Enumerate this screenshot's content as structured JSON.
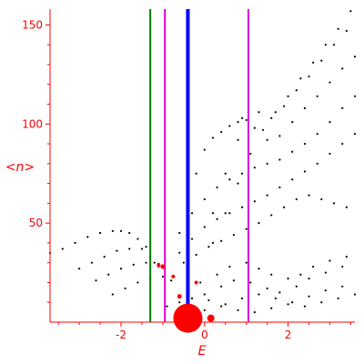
{
  "chart_data": {
    "type": "scatter",
    "title": "",
    "xlabel": "E",
    "ylabel": "<n>",
    "xlim": [
      -3.7,
      3.6
    ],
    "ylim": [
      0,
      158
    ],
    "xticks": [
      -2,
      0,
      2
    ],
    "xtick_labels": [
      "-2",
      "0",
      "2"
    ],
    "yticks": [
      50,
      100,
      150
    ],
    "ytick_labels": [
      "50",
      "100",
      "150"
    ],
    "grid": false,
    "legend": "none",
    "colors": {
      "axis": "#ff0000",
      "points": "#000000",
      "highlight": "#ff0000",
      "blue_line": "#0000ff",
      "green_line": "#008000",
      "magenta_line": "#dd00dd"
    },
    "vertical_lines": [
      {
        "x": -1.3,
        "color": "green"
      },
      {
        "x": -0.95,
        "color": "magenta"
      },
      {
        "x": -0.4,
        "color": "blue"
      },
      {
        "x": 1.05,
        "color": "magenta"
      }
    ],
    "series": [
      {
        "x": [
          0.2,
          0.5,
          0.8,
          1.1,
          1.4,
          1.7,
          2.0,
          2.3,
          2.6,
          2.9,
          3.2,
          3.5
        ],
        "y": [
          40,
          55,
          70,
          85,
          97,
          106,
          114,
          123,
          131,
          140,
          148,
          157
        ]
      },
      {
        "x": [
          0.2,
          0.5,
          0.8,
          1.0,
          1.3,
          1.6,
          1.9,
          2.2,
          2.5,
          2.8,
          3.1,
          3.4
        ],
        "y": [
          55,
          75,
          92,
          102,
          106,
          103,
          109,
          117,
          124,
          132,
          140,
          147
        ]
      },
      {
        "x": [
          -0.4,
          -0.2,
          0.0,
          0.2,
          0.4,
          0.6,
          0.8,
          0.9,
          1.2,
          1.5,
          1.8,
          2.1,
          2.4,
          2.7,
          3.0,
          3.3,
          3.6
        ],
        "y": [
          60,
          75,
          87,
          93,
          96,
          99,
          101,
          103,
          98,
          92,
          94,
          101,
          108,
          114,
          121,
          128,
          134
        ]
      },
      {
        "x": [
          -0.6,
          -0.3,
          0.0,
          0.3,
          0.6,
          0.9,
          1.2,
          1.5,
          1.8,
          2.1,
          2.4,
          2.7,
          3.0,
          3.3,
          3.6
        ],
        "y": [
          45,
          55,
          62,
          68,
          72,
          75,
          78,
          80,
          82,
          86,
          90,
          95,
          101,
          108,
          114
        ]
      },
      {
        "x": [
          -0.6,
          -0.3,
          0.0,
          0.3,
          0.6,
          0.9,
          1.2,
          1.5,
          1.8,
          2.1,
          2.4,
          2.7,
          3.0,
          3.3,
          3.6
        ],
        "y": [
          35,
          42,
          48,
          52,
          55,
          58,
          61,
          64,
          68,
          72,
          76,
          80,
          85,
          90,
          95
        ]
      },
      {
        "x": [
          -0.5,
          -0.2,
          0.1,
          0.4,
          0.7,
          1.0,
          1.3,
          1.6,
          1.9,
          2.2,
          2.5,
          2.8,
          3.1,
          3.4
        ],
        "y": [
          30,
          34,
          38,
          41,
          44,
          47,
          50,
          54,
          58,
          62,
          64,
          62,
          60,
          58
        ]
      },
      {
        "x": [
          -3.7,
          -3.4,
          -3.1,
          -2.8,
          -2.5,
          -2.2,
          -2.0,
          -1.8,
          -1.6,
          -1.4,
          -1.2
        ],
        "y": [
          35,
          37,
          40,
          43,
          45,
          46,
          46,
          45,
          42,
          38,
          30
        ]
      },
      {
        "x": [
          -3.0,
          -2.7,
          -2.4,
          -2.1,
          -1.8,
          -1.5,
          -1.3
        ],
        "y": [
          27,
          30,
          33,
          36,
          37,
          37,
          33
        ]
      },
      {
        "x": [
          -2.6,
          -2.3,
          -2.0,
          -1.7,
          -1.4,
          -1.1
        ],
        "y": [
          21,
          24,
          27,
          29,
          30,
          28
        ]
      },
      {
        "x": [
          -2.2,
          -1.9,
          -1.6,
          -1.3,
          -1.0,
          -0.8
        ],
        "y": [
          14,
          17,
          20,
          22,
          23,
          21
        ]
      },
      {
        "x": [
          -0.1,
          0.3,
          0.6,
          1.0,
          1.3,
          1.6,
          2.0,
          2.3,
          2.6,
          3.0,
          3.4
        ],
        "y": [
          20,
          24,
          28,
          30,
          27,
          24,
          22,
          24,
          28,
          31,
          33
        ]
      },
      {
        "x": [
          0.0,
          0.4,
          0.7,
          1.1,
          1.5,
          1.8,
          2.2,
          2.5,
          2.9,
          3.3
        ],
        "y": [
          14,
          18,
          21,
          20,
          17,
          15,
          18,
          22,
          25,
          28
        ]
      },
      {
        "x": [
          -0.9,
          -0.6,
          -0.3,
          0.1,
          0.5,
          0.9,
          1.3,
          1.7,
          2.1,
          2.5,
          2.9,
          3.3
        ],
        "y": [
          8,
          10,
          12,
          11,
          9,
          12,
          14,
          12,
          10,
          13,
          16,
          18
        ]
      },
      {
        "x": [
          -0.4,
          0.0,
          0.4,
          0.8,
          1.2,
          1.6,
          2.0,
          2.4,
          2.8,
          3.2,
          3.6
        ],
        "y": [
          4,
          6,
          8,
          6,
          5,
          7,
          9,
          8,
          10,
          12,
          14
        ]
      }
    ],
    "highlight_points": [
      {
        "x": -0.4,
        "y": 2,
        "r": 16
      },
      {
        "x": 0.15,
        "y": 2,
        "r": 4
      },
      {
        "x": -0.6,
        "y": 13,
        "r": 2.5
      },
      {
        "x": -1.0,
        "y": 28,
        "r": 2.5
      },
      {
        "x": -1.1,
        "y": 29,
        "r": 2
      },
      {
        "x": -0.75,
        "y": 23,
        "r": 2
      },
      {
        "x": -0.2,
        "y": 20,
        "r": 2
      }
    ]
  }
}
